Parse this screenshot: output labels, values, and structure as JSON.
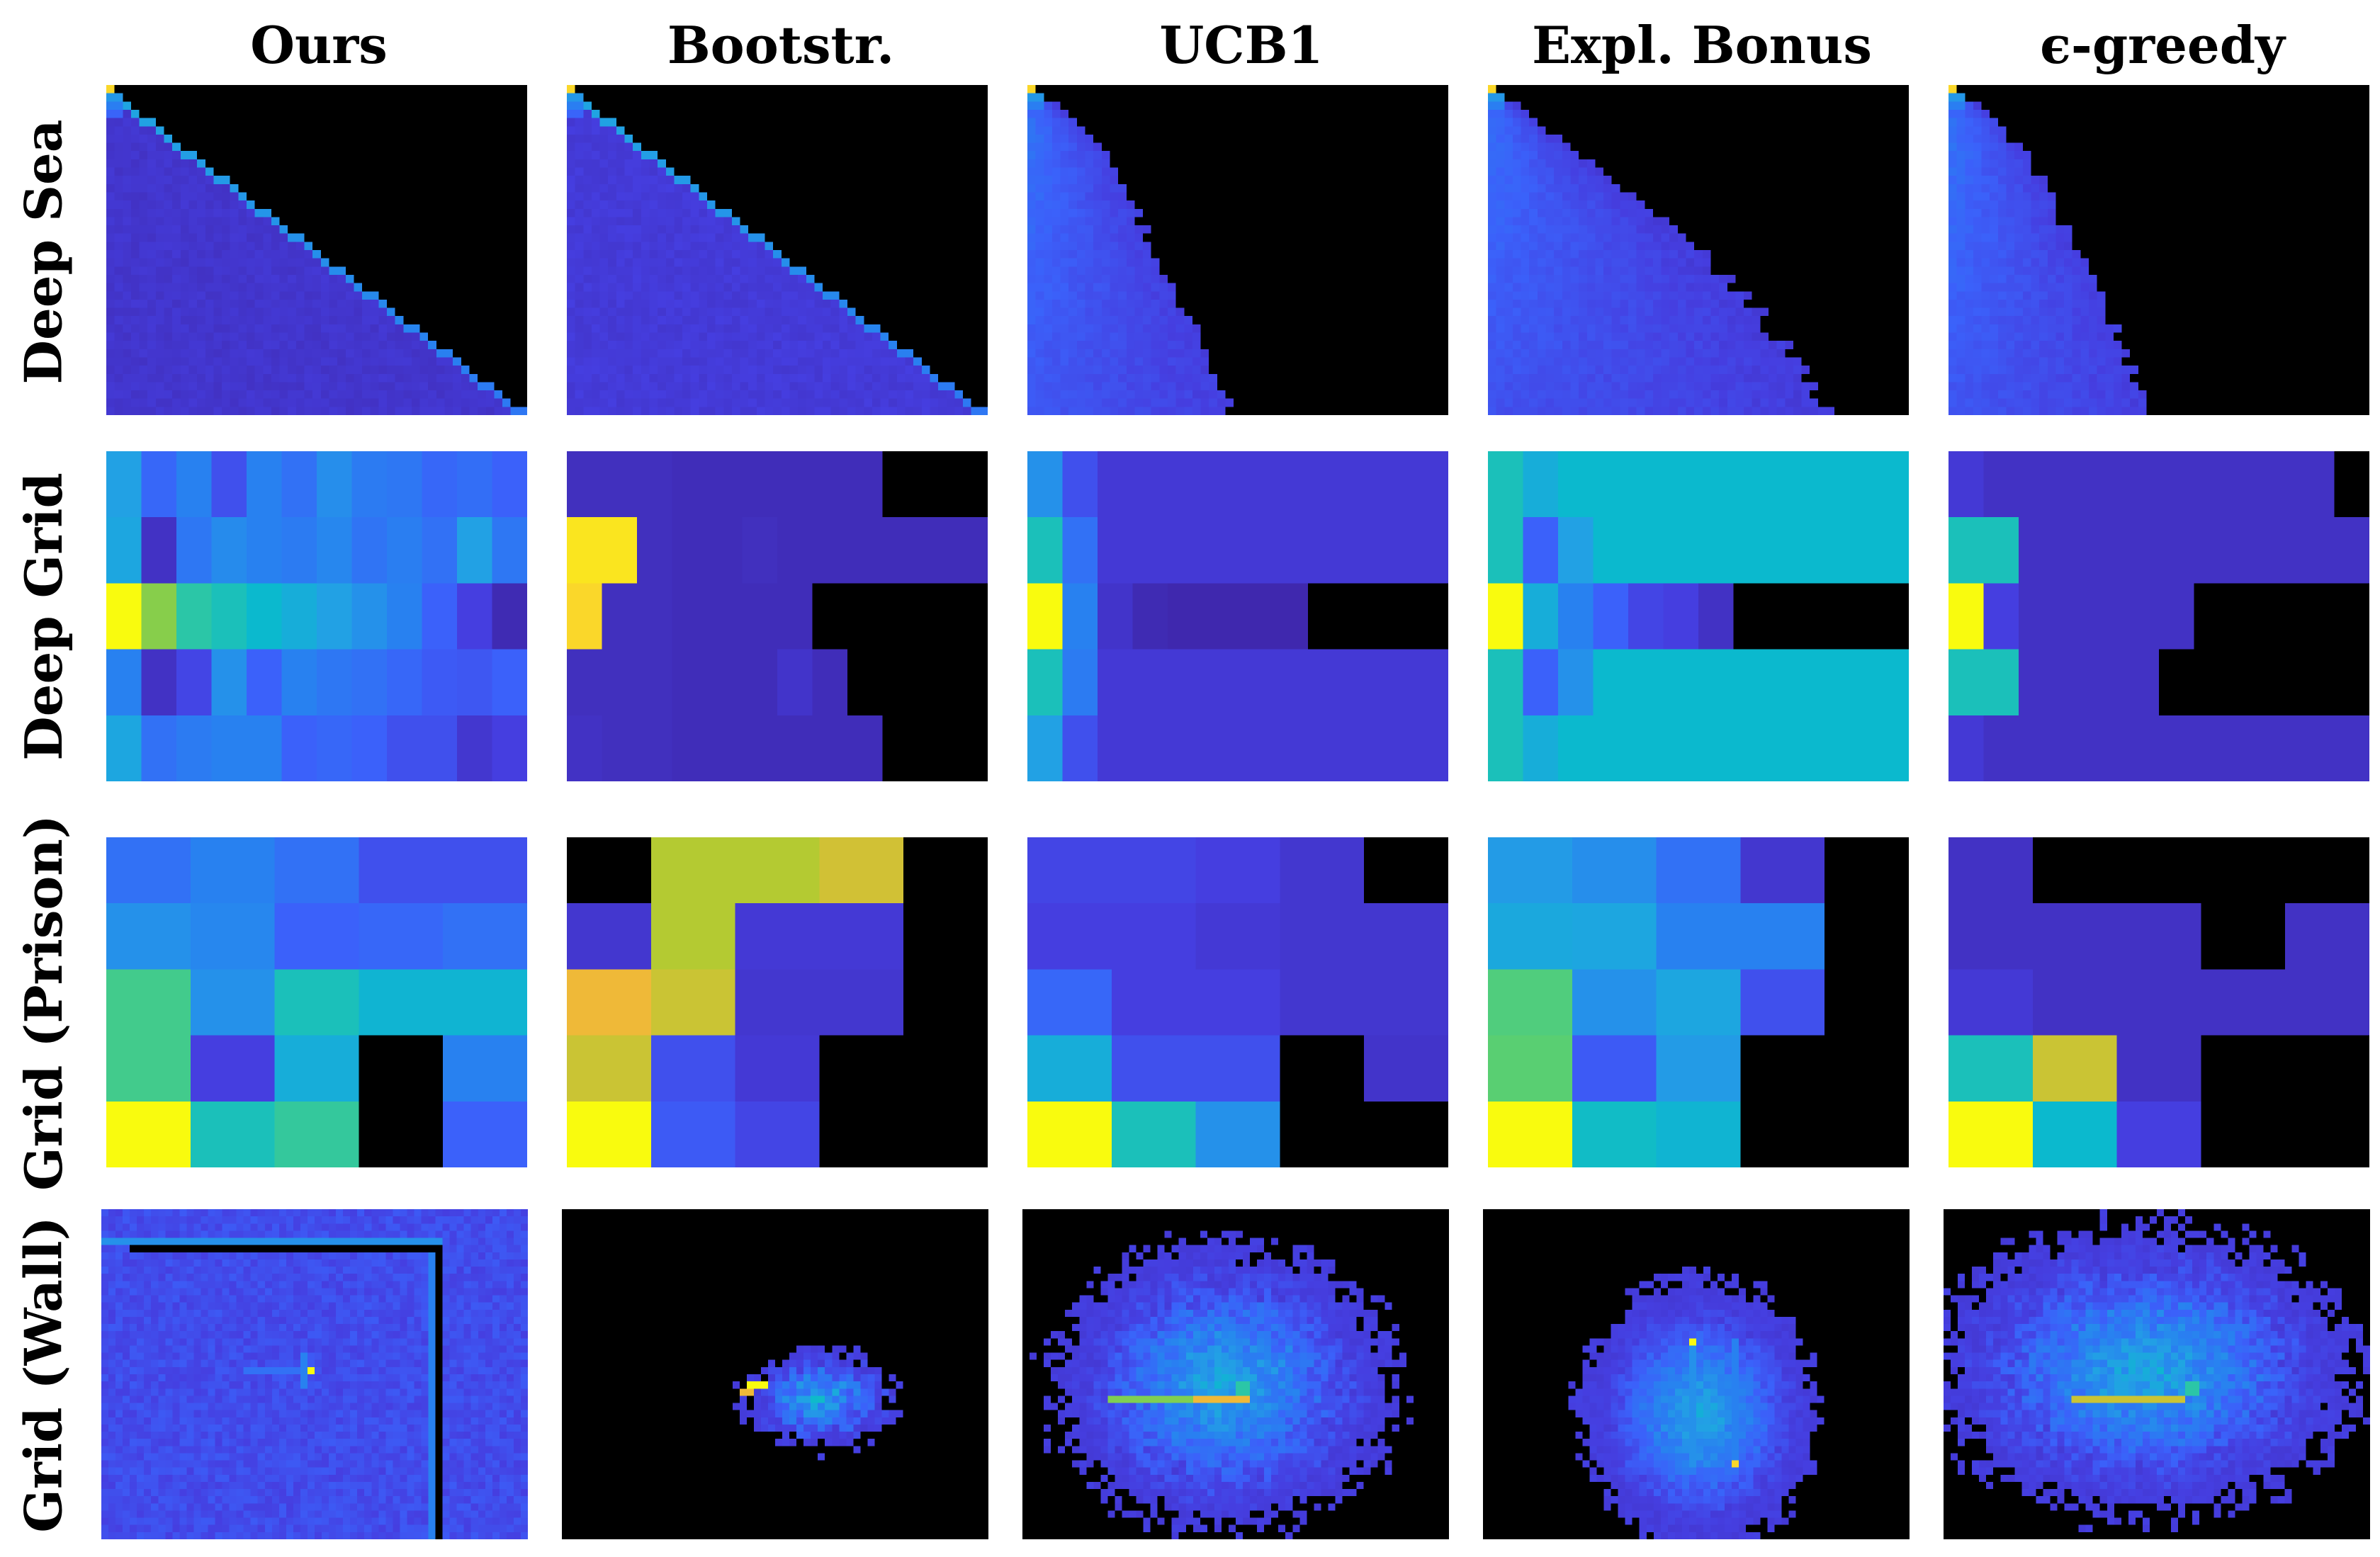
{
  "chart_data": {
    "type": "heatmap",
    "title": "",
    "colormap": "parula",
    "columns": [
      "Ours",
      "Bootstr.",
      "UCB1",
      "Expl. Bonus",
      "ϵ-greedy"
    ],
    "rows": [
      "Deep Sea",
      "Deep Grid",
      "Grid (Prison)",
      "Grid (Wall)"
    ],
    "deep_grid": {
      "Ours": [
        [
          0.4,
          0.22,
          0.3,
          0.15,
          0.3,
          0.25,
          0.34,
          0.28,
          0.27,
          0.22,
          0.24,
          0.2
        ],
        [
          0.42,
          0.05,
          0.27,
          0.33,
          0.3,
          0.28,
          0.32,
          0.26,
          0.29,
          0.25,
          0.4,
          0.27
        ],
        [
          1.0,
          0.76,
          0.6,
          0.55,
          0.5,
          0.45,
          0.4,
          0.35,
          0.3,
          0.2,
          0.1,
          0.02
        ],
        [
          0.3,
          0.05,
          0.12,
          0.35,
          0.2,
          0.3,
          0.27,
          0.25,
          0.22,
          0.18,
          0.17,
          0.2
        ],
        [
          0.42,
          0.25,
          0.28,
          0.3,
          0.3,
          0.2,
          0.22,
          0.2,
          0.15,
          0.15,
          0.07,
          0.1
        ]
      ],
      "Bootstr.": [
        [
          0.04,
          0.04,
          0.04,
          0.03,
          0.03,
          0.03,
          0.03,
          0.03,
          0.03,
          -1,
          -1,
          -1
        ],
        [
          0.97,
          0.97,
          0.04,
          0.03,
          0.03,
          0.04,
          0.03,
          0.03,
          0.03,
          0.03,
          0.03,
          0.03
        ],
        [
          0.95,
          0.04,
          0.04,
          0.03,
          0.03,
          0.03,
          0.03,
          -1,
          -1,
          -1,
          -1,
          -1
        ],
        [
          0.04,
          0.04,
          0.04,
          0.03,
          0.03,
          0.03,
          0.06,
          0.03,
          -1,
          -1,
          -1,
          -1
        ],
        [
          0.05,
          0.04,
          0.04,
          0.03,
          0.03,
          0.03,
          0.03,
          0.03,
          0.03,
          -1,
          -1,
          -1
        ]
      ],
      "UCB1": [
        [
          0.35,
          0.15,
          0.08,
          0.08,
          0.08,
          0.08,
          0.08,
          0.08,
          0.08,
          0.08,
          0.08,
          0.08
        ],
        [
          0.55,
          0.25,
          0.08,
          0.08,
          0.08,
          0.08,
          0.08,
          0.08,
          0.08,
          0.08,
          0.08,
          0.08
        ],
        [
          1.0,
          0.3,
          0.06,
          0.02,
          0.01,
          0.01,
          0.01,
          0.01,
          -1,
          -1,
          -1,
          -1
        ],
        [
          0.55,
          0.28,
          0.08,
          0.08,
          0.08,
          0.08,
          0.08,
          0.08,
          0.08,
          0.08,
          0.08,
          0.08
        ],
        [
          0.4,
          0.15,
          0.08,
          0.08,
          0.08,
          0.08,
          0.08,
          0.08,
          0.08,
          0.08,
          0.08,
          0.08
        ]
      ],
      "Expl. Bonus": [
        [
          0.55,
          0.45,
          0.5,
          0.5,
          0.5,
          0.5,
          0.5,
          0.5,
          0.5,
          0.5,
          0.5,
          0.5
        ],
        [
          0.55,
          0.2,
          0.4,
          0.5,
          0.5,
          0.5,
          0.5,
          0.5,
          0.5,
          0.5,
          0.5,
          0.5
        ],
        [
          1.0,
          0.45,
          0.3,
          0.2,
          0.12,
          0.1,
          0.05,
          -1,
          -1,
          -1,
          -1,
          -1
        ],
        [
          0.55,
          0.2,
          0.35,
          0.5,
          0.5,
          0.5,
          0.5,
          0.5,
          0.5,
          0.5,
          0.5,
          0.5
        ],
        [
          0.55,
          0.45,
          0.5,
          0.5,
          0.5,
          0.5,
          0.5,
          0.5,
          0.5,
          0.5,
          0.5,
          0.5
        ]
      ],
      "ϵ-greedy": [
        [
          0.08,
          0.05,
          0.05,
          0.05,
          0.05,
          0.05,
          0.05,
          0.05,
          0.05,
          0.05,
          0.05,
          -1
        ],
        [
          0.55,
          0.55,
          0.05,
          0.05,
          0.05,
          0.05,
          0.05,
          0.05,
          0.05,
          0.05,
          0.05,
          0.05
        ],
        [
          1.0,
          0.1,
          0.05,
          0.05,
          0.05,
          0.05,
          0.05,
          -1,
          -1,
          -1,
          -1,
          -1
        ],
        [
          0.55,
          0.55,
          0.05,
          0.05,
          0.05,
          0.05,
          -1,
          -1,
          -1,
          -1,
          -1,
          -1
        ],
        [
          0.08,
          0.05,
          0.05,
          0.05,
          0.05,
          0.05,
          0.05,
          0.05,
          0.05,
          0.05,
          0.05,
          0.05
        ]
      ]
    },
    "grid_prison": {
      "Ours": [
        [
          0.25,
          0.3,
          0.25,
          0.15,
          0.15
        ],
        [
          0.35,
          0.32,
          0.2,
          0.22,
          0.25
        ],
        [
          0.65,
          0.35,
          0.55,
          0.48,
          0.48
        ],
        [
          0.65,
          0.1,
          0.45,
          -1,
          0.3
        ],
        [
          1.0,
          0.55,
          0.62,
          -1,
          0.2
        ]
      ],
      "Bootstr.": [
        [
          -1,
          0.82,
          0.82,
          0.86,
          -1
        ],
        [
          0.07,
          0.82,
          0.08,
          0.08,
          -1
        ],
        [
          0.9,
          0.85,
          0.07,
          0.07,
          -1
        ],
        [
          0.85,
          0.15,
          0.08,
          -1,
          -1
        ],
        [
          1.0,
          0.18,
          0.12,
          -1,
          -1
        ]
      ],
      "UCB1": [
        [
          0.12,
          0.12,
          0.1,
          0.07,
          -1
        ],
        [
          0.1,
          0.1,
          0.08,
          0.07,
          0.07
        ],
        [
          0.22,
          0.1,
          0.1,
          0.07,
          0.07
        ],
        [
          0.45,
          0.15,
          0.15,
          -1,
          0.06
        ],
        [
          1.0,
          0.55,
          0.35,
          -1,
          -1
        ]
      ],
      "Expl. Bonus": [
        [
          0.38,
          0.34,
          0.25,
          0.07,
          -1
        ],
        [
          0.43,
          0.42,
          0.3,
          0.3,
          -1
        ],
        [
          0.68,
          0.35,
          0.42,
          0.15,
          -1
        ],
        [
          0.7,
          0.18,
          0.38,
          -1,
          -1
        ],
        [
          1.0,
          0.52,
          0.48,
          -1,
          -1
        ]
      ],
      "ϵ-greedy": [
        [
          0.05,
          -1,
          -1,
          -1,
          -1
        ],
        [
          0.05,
          0.05,
          0.05,
          -1,
          0.05
        ],
        [
          0.08,
          0.05,
          0.05,
          0.05,
          0.05
        ],
        [
          0.55,
          0.85,
          0.05,
          -1,
          -1
        ],
        [
          1.0,
          0.5,
          0.1,
          -1,
          -1
        ]
      ]
    }
  }
}
